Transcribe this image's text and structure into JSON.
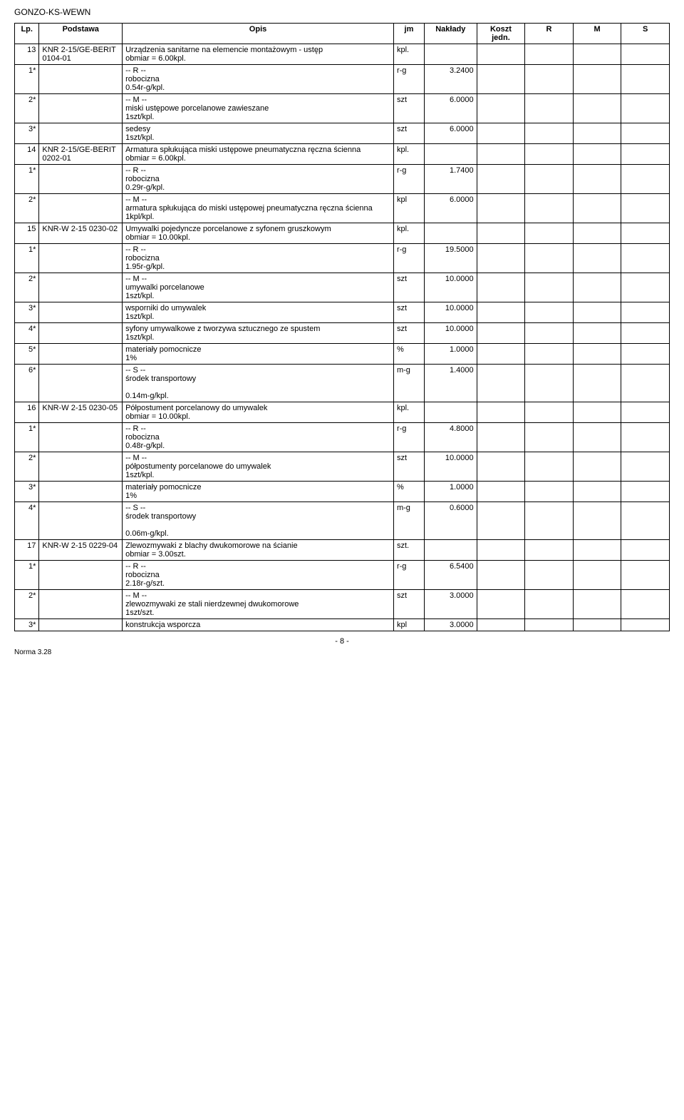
{
  "doc": {
    "header": "GONZO-KS-WEWN",
    "page_number": "- 8 -",
    "footer": "Norma 3.28"
  },
  "cols": {
    "lp": "Lp.",
    "podstawa": "Podstawa",
    "opis": "Opis",
    "jm": "jm",
    "naklady": "Nakłady",
    "koszt": "Koszt jedn.",
    "r": "R",
    "m": "M",
    "s": "S"
  },
  "rows": [
    {
      "lp": "13",
      "pod": "KNR 2-15/GE-BERIT 0104-01",
      "opis": "Urządzenia sanitarne na elemencie montażowym - ustęp\nobmiar = 6.00kpl.",
      "jm": "kpl.",
      "nak": ""
    },
    {
      "lp": "1*",
      "pod": "",
      "opis": "-- R --\nrobocizna\n0.54r-g/kpl.",
      "jm": "r-g",
      "nak": "3.2400"
    },
    {
      "lp": "2*",
      "pod": "",
      "opis": "-- M --\nmiski ustępowe porcelanowe zawieszane\n1szt/kpl.",
      "jm": "szt",
      "nak": "6.0000"
    },
    {
      "lp": "3*",
      "pod": "",
      "opis": "sedesy\n1szt/kpl.",
      "jm": "szt",
      "nak": "6.0000"
    },
    {
      "lp": "14",
      "pod": "KNR 2-15/GE-BERIT 0202-01",
      "opis": "Armatura spłukująca miski ustępowe pneumatyczna ręczna ścienna\nobmiar = 6.00kpl.",
      "jm": "kpl.",
      "nak": ""
    },
    {
      "lp": "1*",
      "pod": "",
      "opis": "-- R --\nrobocizna\n0.29r-g/kpl.",
      "jm": "r-g",
      "nak": "1.7400"
    },
    {
      "lp": "2*",
      "pod": "",
      "opis": "-- M --\narmatura spłukująca do miski ustępowej pneumatyczna ręczna ścienna\n1kpl/kpl.",
      "jm": "kpl",
      "nak": "6.0000"
    },
    {
      "lp": "15",
      "pod": "KNR-W 2-15 0230-02",
      "opis": "Umywalki pojedyncze porcelanowe z syfonem gruszkowym\nobmiar = 10.00kpl.",
      "jm": "kpl.",
      "nak": ""
    },
    {
      "lp": "1*",
      "pod": "",
      "opis": "-- R --\nrobocizna\n1.95r-g/kpl.",
      "jm": "r-g",
      "nak": "19.5000"
    },
    {
      "lp": "2*",
      "pod": "",
      "opis": "-- M --\numywalki porcelanowe\n1szt/kpl.",
      "jm": "szt",
      "nak": "10.0000"
    },
    {
      "lp": "3*",
      "pod": "",
      "opis": "wsporniki do umywalek\n1szt/kpl.",
      "jm": "szt",
      "nak": "10.0000"
    },
    {
      "lp": "4*",
      "pod": "",
      "opis": "syfony umywalkowe z tworzywa sztucznego ze spustem\n1szt/kpl.",
      "jm": "szt",
      "nak": "10.0000"
    },
    {
      "lp": "5*",
      "pod": "",
      "opis": "materiały pomocnicze\n1%",
      "jm": "%",
      "nak": "1.0000"
    },
    {
      "lp": "6*",
      "pod": "",
      "opis": "-- S --\nśrodek transportowy\n\n0.14m-g/kpl.",
      "jm": "m-g",
      "nak": "1.4000"
    },
    {
      "lp": "16",
      "pod": "KNR-W 2-15 0230-05",
      "opis": "Półpostument porcelanowy do umywalek\nobmiar = 10.00kpl.",
      "jm": "kpl.",
      "nak": ""
    },
    {
      "lp": "1*",
      "pod": "",
      "opis": "-- R --\nrobocizna\n0.48r-g/kpl.",
      "jm": "r-g",
      "nak": "4.8000"
    },
    {
      "lp": "2*",
      "pod": "",
      "opis": "-- M --\npółpostumenty porcelanowe do umywalek\n1szt/kpl.",
      "jm": "szt",
      "nak": "10.0000"
    },
    {
      "lp": "3*",
      "pod": "",
      "opis": "materiały pomocnicze\n1%",
      "jm": "%",
      "nak": "1.0000"
    },
    {
      "lp": "4*",
      "pod": "",
      "opis": "-- S --\nśrodek transportowy\n\n0.06m-g/kpl.",
      "jm": "m-g",
      "nak": "0.6000"
    },
    {
      "lp": "17",
      "pod": "KNR-W 2-15 0229-04",
      "opis": "Zlewozmywaki z blachy dwukomorowe na ścianie\nobmiar = 3.00szt.",
      "jm": "szt.",
      "nak": ""
    },
    {
      "lp": "1*",
      "pod": "",
      "opis": "-- R --\nrobocizna\n2.18r-g/szt.",
      "jm": "r-g",
      "nak": "6.5400"
    },
    {
      "lp": "2*",
      "pod": "",
      "opis": "-- M --\nzlewozmywaki ze stali nierdzewnej dwukomorowe\n1szt/szt.",
      "jm": "szt",
      "nak": "3.0000"
    },
    {
      "lp": "3*",
      "pod": "",
      "opis": "konstrukcja wsporcza",
      "jm": "kpl",
      "nak": "3.0000"
    }
  ]
}
